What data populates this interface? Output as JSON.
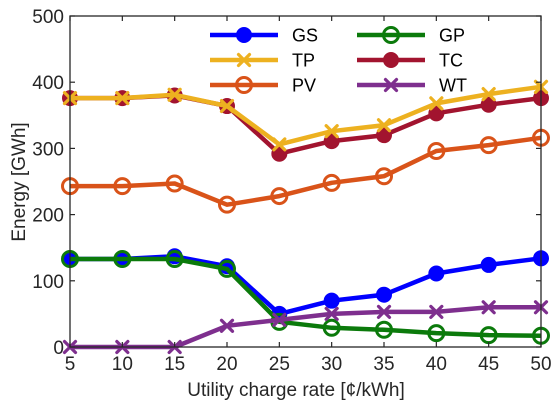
{
  "chart_data": {
    "type": "line",
    "xlabel": "Utility charge rate [¢/kWh]",
    "ylabel": "Energy [GWh]",
    "x": [
      5,
      10,
      15,
      20,
      25,
      30,
      35,
      40,
      45,
      50
    ],
    "xlim": [
      5,
      50
    ],
    "ylim": [
      0,
      500
    ],
    "xticks": [
      "5",
      "10",
      "15",
      "20",
      "25",
      "30",
      "35",
      "40",
      "45",
      "50"
    ],
    "yticks": [
      "0",
      "100",
      "200",
      "300",
      "400",
      "500"
    ],
    "grid": false,
    "legend_position": "top-center",
    "series": [
      {
        "name": "GS",
        "color": "#0000ff",
        "marker": "dot",
        "values": [
          133,
          133,
          137,
          122,
          50,
          70,
          79,
          111,
          124,
          134
        ]
      },
      {
        "name": "GP",
        "color": "#0b7a0b",
        "marker": "ring",
        "values": [
          133,
          133,
          133,
          118,
          38,
          29,
          26,
          21,
          18,
          17
        ]
      },
      {
        "name": "TP",
        "color": "#edb120",
        "marker": "x",
        "values": [
          376,
          376,
          381,
          364,
          306,
          326,
          335,
          368,
          382,
          393
        ]
      },
      {
        "name": "TC",
        "color": "#a2142f",
        "marker": "dot",
        "values": [
          376,
          376,
          380,
          364,
          292,
          311,
          320,
          353,
          366,
          376
        ]
      },
      {
        "name": "PV",
        "color": "#d95319",
        "marker": "ring",
        "values": [
          243,
          243,
          247,
          215,
          228,
          248,
          258,
          296,
          305,
          316
        ]
      },
      {
        "name": "WT",
        "color": "#7e2f8e",
        "marker": "x",
        "values": [
          0,
          0,
          0,
          32,
          41,
          50,
          53,
          53,
          60,
          60
        ]
      }
    ]
  }
}
